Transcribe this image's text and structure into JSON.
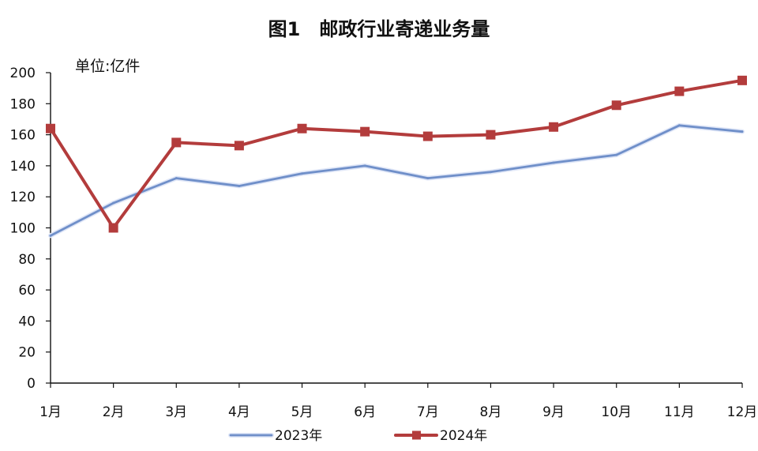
{
  "chart_data": {
    "type": "line",
    "title": "图1　邮政行业寄递业务量",
    "unit_label": "单位:亿件",
    "ylim": [
      0,
      200
    ],
    "yticks": [
      0,
      20,
      40,
      60,
      80,
      100,
      120,
      140,
      160,
      180,
      200
    ],
    "categories": [
      "1月",
      "2月",
      "3月",
      "4月",
      "5月",
      "6月",
      "7月",
      "8月",
      "9月",
      "10月",
      "11月",
      "12月"
    ],
    "legend_position": "bottom",
    "grid": false,
    "series": [
      {
        "name": "2023年",
        "color": "#6f8fc9",
        "marker": "none",
        "values": [
          95,
          116,
          132,
          127,
          135,
          140,
          132,
          136,
          142,
          147,
          166,
          162
        ]
      },
      {
        "name": "2024年",
        "color": "#b33c3c",
        "marker": "square",
        "values": [
          164,
          100,
          155,
          153,
          164,
          162,
          159,
          160,
          165,
          179,
          188,
          195
        ]
      }
    ]
  }
}
